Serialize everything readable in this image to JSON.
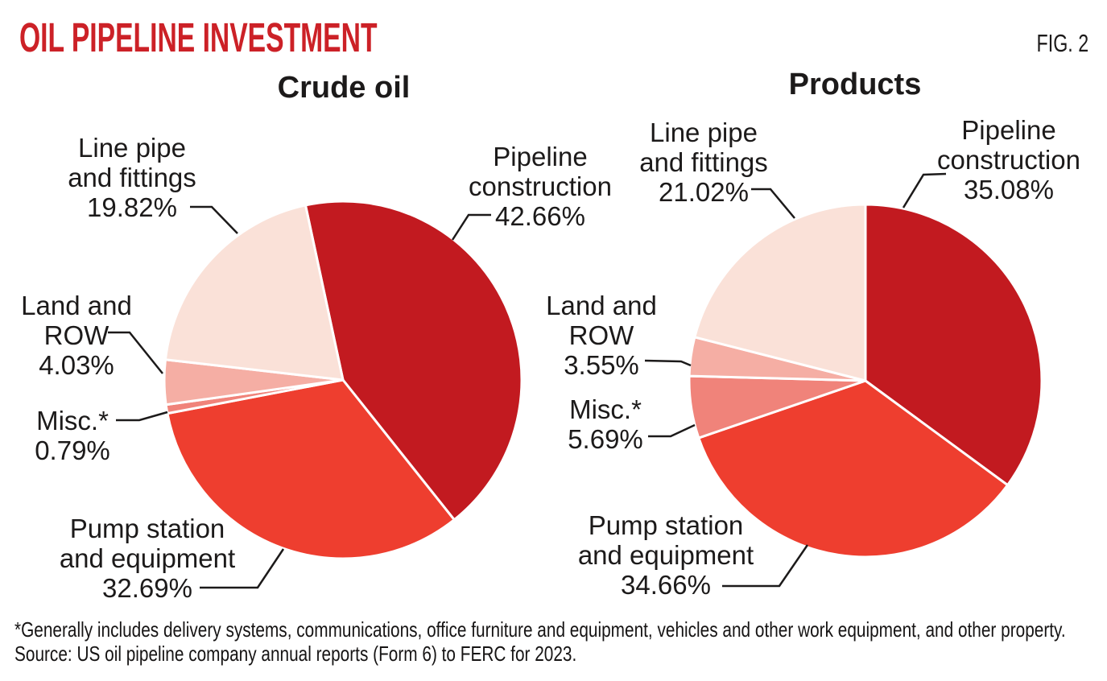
{
  "header": {
    "title": "OIL PIPELINE INVESTMENT",
    "figure_label": "FIG. 2"
  },
  "colors": {
    "accent_red": "#cc2127",
    "text": "#1c1a1a",
    "divider": "#ffffff"
  },
  "chart_data": [
    {
      "type": "pie",
      "title": "Crude oil",
      "start_angle_deg": -12.1,
      "direction": "clockwise",
      "legend_position": "callouts",
      "slices": [
        {
          "name": "Pipeline construction",
          "value": 42.66,
          "color": "#c21a20",
          "callout": "Pipeline\nconstruction\n42.66%"
        },
        {
          "name": "Pump station and equipment",
          "value": 32.69,
          "color": "#ee3e2f",
          "callout": "Pump station\nand equipment\n32.69%"
        },
        {
          "name": "Misc.*",
          "value": 0.79,
          "color": "#f0837a",
          "callout": "Misc.*\n0.79%"
        },
        {
          "name": "Land and ROW",
          "value": 4.03,
          "color": "#f5aea4",
          "callout": "Land and\nROW\n4.03%"
        },
        {
          "name": "Line pipe and fittings",
          "value": 19.82,
          "color": "#fae1d8",
          "callout": "Line pipe\nand fittings\n19.82%"
        }
      ]
    },
    {
      "type": "pie",
      "title": "Products",
      "start_angle_deg": 0,
      "direction": "clockwise",
      "legend_position": "callouts",
      "slices": [
        {
          "name": "Pipeline construction",
          "value": 35.08,
          "color": "#c21a20",
          "callout": "Pipeline\nconstruction\n35.08%"
        },
        {
          "name": "Pump station and equipment",
          "value": 34.66,
          "color": "#ee3e2f",
          "callout": "Pump station\nand equipment\n34.66%"
        },
        {
          "name": "Misc.*",
          "value": 5.69,
          "color": "#f0837a",
          "callout": "Misc.*\n5.69%"
        },
        {
          "name": "Land and ROW",
          "value": 3.55,
          "color": "#f5aea4",
          "callout": "Land and\nROW\n3.55%"
        },
        {
          "name": "Line pipe and fittings",
          "value": 21.02,
          "color": "#fae1d8",
          "callout": "Line pipe\nand fittings\n21.02%"
        }
      ]
    }
  ],
  "footnotes": {
    "asterisk": "*Generally includes delivery systems, communications, office furniture and equipment, vehicles and other work equipment, and other property.",
    "source": "Source: US oil pipeline company annual reports (Form 6) to FERC for 2023."
  }
}
